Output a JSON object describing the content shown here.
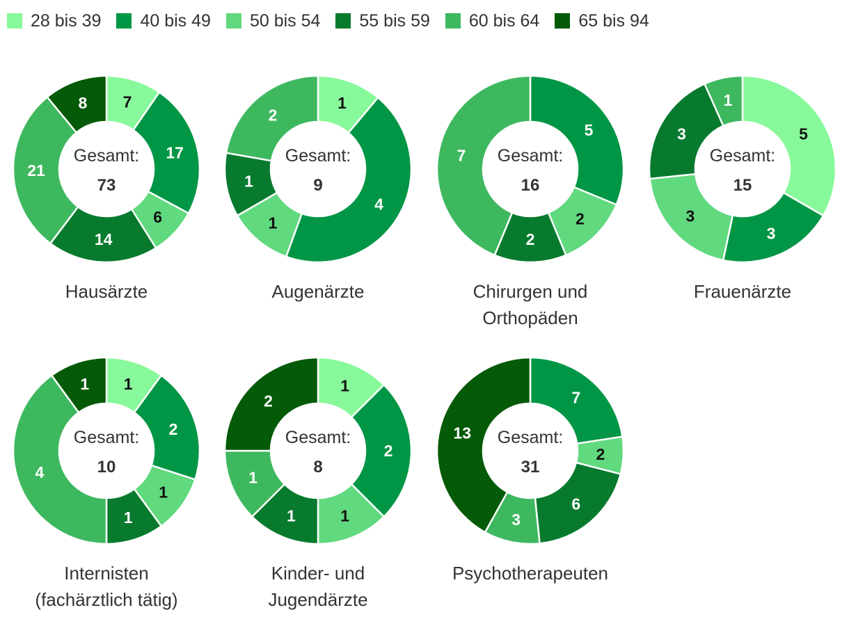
{
  "legend": {
    "items": [
      {
        "label": "28 bis 39",
        "color": "#88f99a"
      },
      {
        "label": "40 bis 49",
        "color": "#009645"
      },
      {
        "label": "50 bis 54",
        "color": "#61d97e"
      },
      {
        "label": "55 bis 59",
        "color": "#077a2e"
      },
      {
        "label": "60 bis 64",
        "color": "#3eb85f"
      },
      {
        "label": "65 bis 94",
        "color": "#045a06"
      }
    ]
  },
  "center_label": "Gesamt:",
  "chart_data": [
    {
      "type": "pie",
      "title": [
        "Hausärzte"
      ],
      "total": 73,
      "categories": [
        "28 bis 39",
        "40 bis 49",
        "50 bis 54",
        "55 bis 59",
        "60 bis 64",
        "65 bis 94"
      ],
      "values": [
        7,
        17,
        6,
        14,
        21,
        8
      ]
    },
    {
      "type": "pie",
      "title": [
        "Augenärzte"
      ],
      "total": 9,
      "categories": [
        "28 bis 39",
        "40 bis 49",
        "50 bis 54",
        "55 bis 59",
        "60 bis 64"
      ],
      "values": [
        1,
        4,
        1,
        1,
        2
      ]
    },
    {
      "type": "pie",
      "title": [
        "Chirurgen und",
        "Orthopäden"
      ],
      "total": 16,
      "categories": [
        "40 bis 49",
        "50 bis 54",
        "55 bis 59",
        "60 bis 64"
      ],
      "values": [
        5,
        2,
        2,
        7
      ]
    },
    {
      "type": "pie",
      "title": [
        "Frauenärzte"
      ],
      "total": 15,
      "categories": [
        "28 bis 39",
        "40 bis 49",
        "50 bis 54",
        "55 bis 59",
        "60 bis 64"
      ],
      "values": [
        5,
        3,
        3,
        3,
        1
      ]
    },
    {
      "type": "pie",
      "title": [
        "Internisten",
        "(fachärztlich tätig)"
      ],
      "total": 10,
      "categories": [
        "28 bis 39",
        "40 bis 49",
        "50 bis 54",
        "55 bis 59",
        "60 bis 64",
        "65 bis 94"
      ],
      "values": [
        1,
        2,
        1,
        1,
        4,
        1
      ]
    },
    {
      "type": "pie",
      "title": [
        "Kinder- und",
        "Jugendärzte"
      ],
      "total": 8,
      "categories": [
        "28 bis 39",
        "40 bis 49",
        "50 bis 54",
        "55 bis 59",
        "60 bis 64",
        "65 bis 94"
      ],
      "values": [
        1,
        2,
        1,
        1,
        1,
        2
      ]
    },
    {
      "type": "pie",
      "title": [
        "Psychotherapeuten"
      ],
      "total": 31,
      "categories": [
        "40 bis 49",
        "50 bis 54",
        "55 bis 59",
        "60 bis 64",
        "65 bis 94"
      ],
      "values": [
        7,
        2,
        6,
        3,
        13
      ]
    }
  ]
}
